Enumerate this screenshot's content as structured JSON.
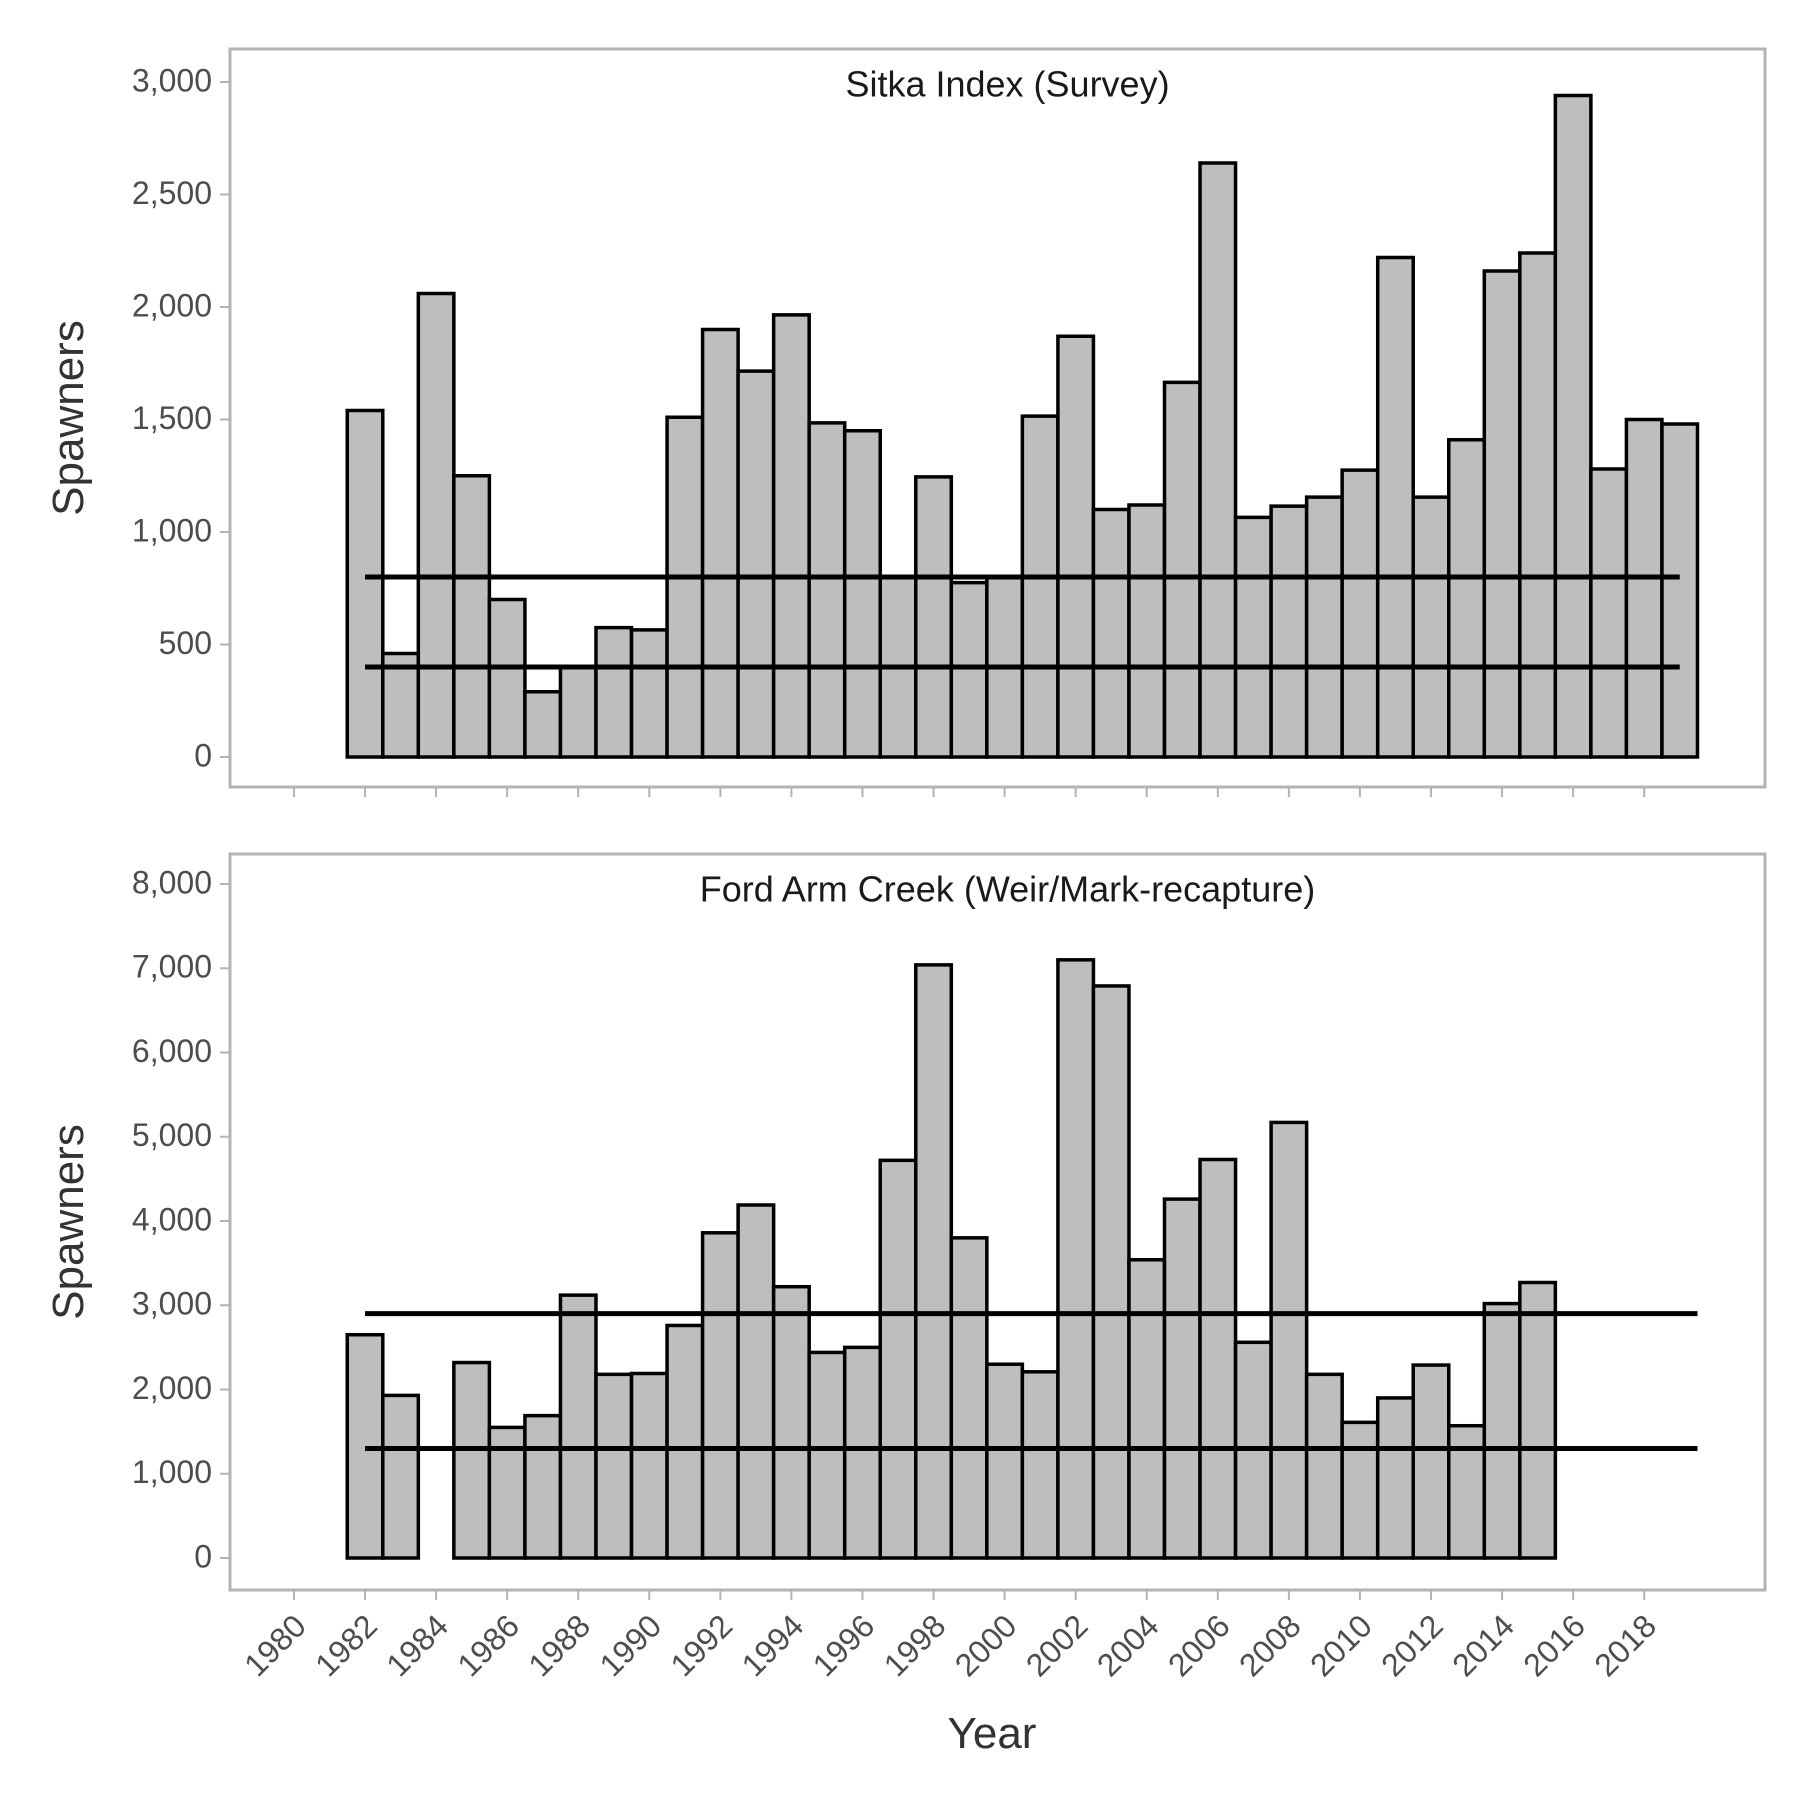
{
  "xlabel": "Year",
  "chart_data": [
    {
      "type": "bar",
      "title": "Sitka Index (Survey)",
      "xlabel": "Year",
      "ylabel": "Spawners",
      "ylim": [
        0,
        3000
      ],
      "yticks": [
        0,
        500,
        1000,
        1500,
        2000,
        2500,
        3000
      ],
      "ytick_labels": [
        "0",
        "500",
        "1,000",
        "1,500",
        "2,000",
        "2,500",
        "3,000"
      ],
      "grid": false,
      "reference_lines": [
        800,
        400
      ],
      "x": [
        1982,
        1983,
        1984,
        1985,
        1986,
        1987,
        1988,
        1989,
        1990,
        1991,
        1992,
        1993,
        1994,
        1995,
        1996,
        1997,
        1998,
        1999,
        2000,
        2001,
        2002,
        2003,
        2004,
        2005,
        2006,
        2007,
        2008,
        2009,
        2010,
        2011,
        2012,
        2013,
        2014,
        2015,
        2016,
        2017,
        2018,
        2019
      ],
      "values": [
        1540,
        460,
        2060,
        1250,
        700,
        290,
        400,
        575,
        565,
        1510,
        1900,
        1715,
        1965,
        1485,
        1450,
        800,
        1245,
        775,
        800,
        1515,
        1870,
        1100,
        1120,
        1665,
        2640,
        1065,
        1115,
        1155,
        1275,
        2220,
        1155,
        1410,
        2160,
        2240,
        2940,
        1280,
        1500,
        1480
      ]
    },
    {
      "type": "bar",
      "title": "Ford Arm Creek (Weir/Mark-recapture)",
      "xlabel": "Year",
      "ylabel": "Spawners",
      "ylim": [
        0,
        8000
      ],
      "yticks": [
        0,
        1000,
        2000,
        3000,
        4000,
        5000,
        6000,
        7000,
        8000
      ],
      "ytick_labels": [
        "0",
        "1,000",
        "2,000",
        "3,000",
        "4,000",
        "5,000",
        "6,000",
        "7,000",
        "8,000"
      ],
      "grid": false,
      "reference_lines": [
        2900,
        1300
      ],
      "x": [
        1982,
        1983,
        1985,
        1986,
        1987,
        1988,
        1989,
        1990,
        1991,
        1992,
        1993,
        1994,
        1995,
        1996,
        1997,
        1998,
        1999,
        2000,
        2001,
        2002,
        2003,
        2004,
        2005,
        2006,
        2007,
        2008,
        2009,
        2010,
        2011,
        2012,
        2013,
        2014,
        2015
      ],
      "values": [
        2650,
        1930,
        2320,
        1550,
        1690,
        3120,
        2180,
        2190,
        2760,
        3860,
        4190,
        3220,
        2440,
        2500,
        4720,
        7040,
        3800,
        2300,
        2210,
        7100,
        6790,
        3540,
        4260,
        4730,
        2560,
        5170,
        2180,
        1610,
        1900,
        2290,
        1570,
        3020,
        3270
      ]
    }
  ],
  "xticks": [
    1980,
    1982,
    1984,
    1986,
    1988,
    1990,
    1992,
    1994,
    1996,
    1998,
    2000,
    2002,
    2004,
    2006,
    2008,
    2010,
    2012,
    2014,
    2016,
    2018
  ],
  "xlim": [
    1978.2,
    2021.4
  ]
}
